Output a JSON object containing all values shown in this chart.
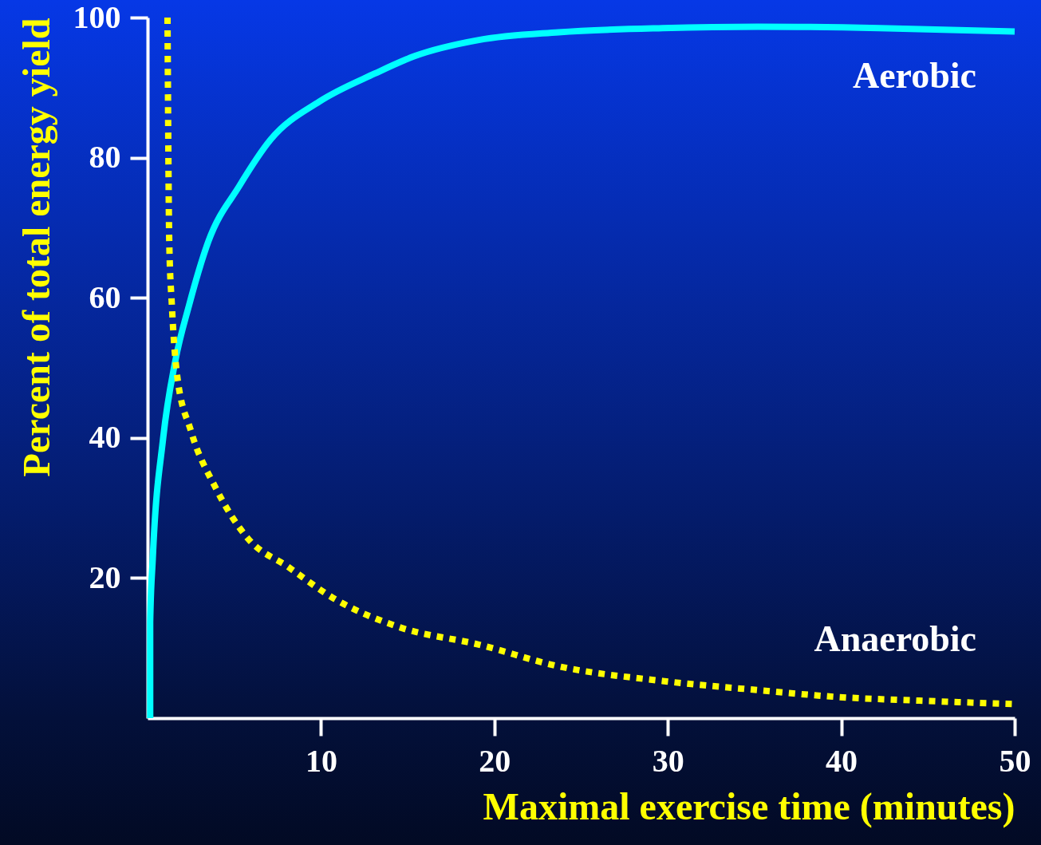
{
  "chart_data": {
    "type": "line",
    "xlabel": "Maximal exercise time (minutes)",
    "ylabel": "Percent of total energy yield",
    "xlim": [
      0,
      50
    ],
    "ylim": [
      0,
      100
    ],
    "xticks": [
      10,
      20,
      30,
      40,
      50
    ],
    "yticks": [
      20,
      40,
      60,
      80,
      100
    ],
    "grid": false,
    "marker": "none",
    "series": [
      {
        "name": "Aerobic",
        "color": "#00ffff",
        "line_style": "solid",
        "x": [
          0.15,
          0.15,
          0.3,
          0.9,
          1.6,
          2.4,
          3.5,
          5.3,
          7.1,
          9.9,
          13.1,
          15.4,
          19.1,
          23.7,
          29.7,
          35.2,
          42.2,
          50
        ],
        "values": [
          0,
          13.7,
          22.8,
          40,
          51,
          59,
          68,
          76,
          82.6,
          88,
          92,
          94.5,
          96.8,
          97.9,
          98.5,
          98.7,
          98.5,
          98
        ]
      },
      {
        "name": "Anaerobic",
        "color": "#ffff00",
        "line_style": "dotted",
        "x": [
          1.15,
          1.25,
          1.4,
          1.7,
          2.5,
          3.9,
          5.8,
          8.1,
          10.8,
          14.5,
          19.1,
          23.7,
          29.7,
          35.2,
          39.9,
          44.5,
          50
        ],
        "values": [
          100,
          68,
          59,
          49,
          41,
          33,
          25.6,
          21.6,
          17,
          13,
          10.5,
          7.4,
          5.3,
          4,
          3,
          2.5,
          2
        ]
      }
    ]
  }
}
